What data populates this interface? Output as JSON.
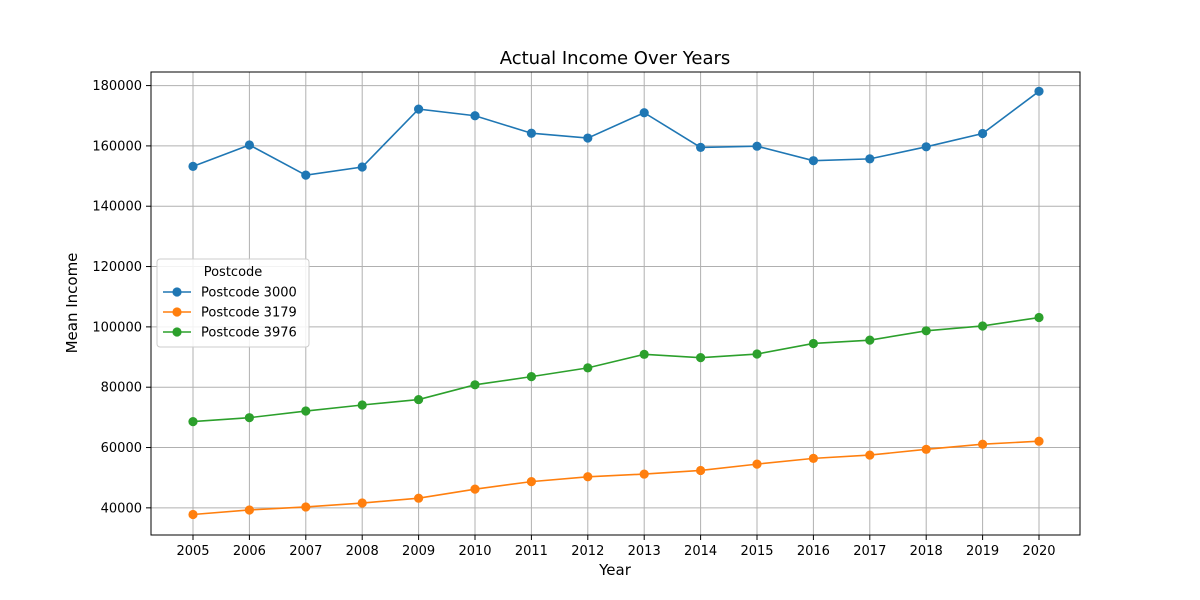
{
  "chart_data": {
    "type": "line",
    "title": "Actual Income Over Years",
    "xlabel": "Year",
    "ylabel": "Mean Income",
    "categories": [
      "2005",
      "2006",
      "2007",
      "2008",
      "2009",
      "2010",
      "2011",
      "2012",
      "2013",
      "2014",
      "2015",
      "2016",
      "2017",
      "2018",
      "2019",
      "2020"
    ],
    "ylim": [
      31000,
      184500
    ],
    "yticks": [
      40000,
      60000,
      80000,
      100000,
      120000,
      140000,
      160000,
      180000
    ],
    "grid": true,
    "legend": {
      "title": "Postcode",
      "placement": "center-left"
    },
    "series": [
      {
        "name": "Postcode 3000",
        "color": "#1f77b4",
        "values": [
          153200,
          160300,
          150300,
          153000,
          172200,
          170000,
          164200,
          162600,
          171000,
          159500,
          159900,
          155100,
          155700,
          159700,
          164100,
          178100
        ]
      },
      {
        "name": "Postcode 3179",
        "color": "#ff7f0e",
        "values": [
          37800,
          39300,
          40300,
          41600,
          43200,
          46200,
          48700,
          50300,
          51200,
          52400,
          54500,
          56400,
          57500,
          59400,
          61100,
          62100
        ]
      },
      {
        "name": "Postcode 3976",
        "color": "#2ca02c",
        "values": [
          68600,
          69900,
          72100,
          74100,
          75900,
          80800,
          83500,
          86400,
          90900,
          89800,
          91000,
          94500,
          95600,
          98700,
          100300,
          103100
        ]
      }
    ]
  }
}
